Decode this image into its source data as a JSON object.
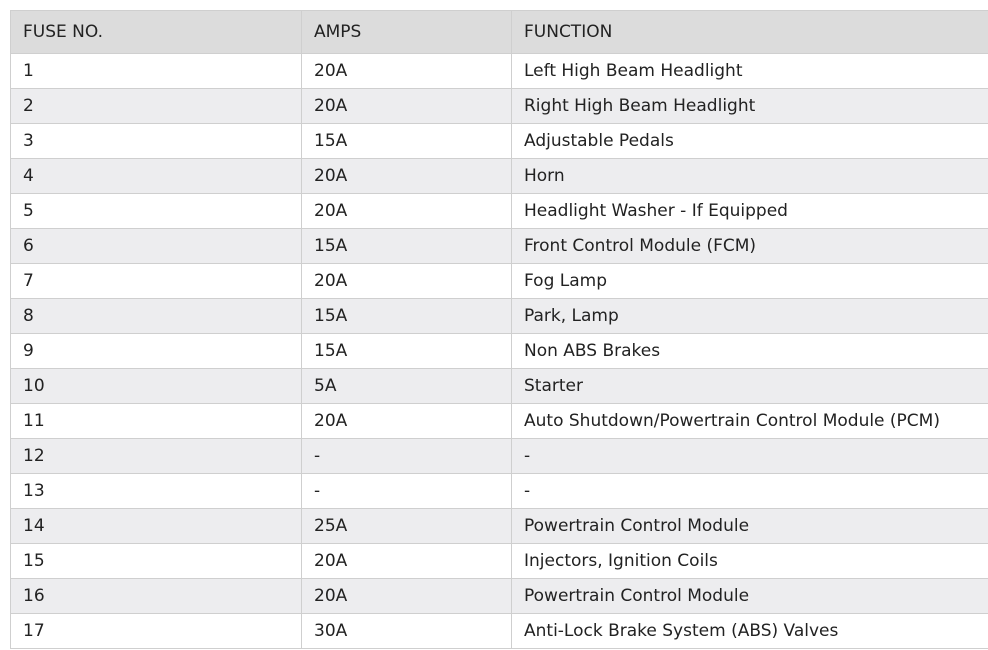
{
  "headers": [
    "FUSE NO.",
    "AMPS",
    "FUNCTION"
  ],
  "rows": [
    [
      "1",
      "20A",
      "Left High Beam Headlight"
    ],
    [
      "2",
      "20A",
      "Right High Beam Headlight"
    ],
    [
      "3",
      "15A",
      "Adjustable Pedals"
    ],
    [
      "4",
      "20A",
      "Horn"
    ],
    [
      "5",
      "20A",
      "Headlight Washer - If Equipped"
    ],
    [
      "6",
      "15A",
      "Front Control Module (FCM)"
    ],
    [
      "7",
      "20A",
      "Fog Lamp"
    ],
    [
      "8",
      "15A",
      "Park, Lamp"
    ],
    [
      "9",
      "15A",
      "Non ABS Brakes"
    ],
    [
      "10",
      "5A",
      "Starter"
    ],
    [
      "11",
      "20A",
      "Auto Shutdown/Powertrain Control Module (PCM)"
    ],
    [
      "12",
      "-",
      "-"
    ],
    [
      "13",
      "-",
      "-"
    ],
    [
      "14",
      "25A",
      "Powertrain Control Module"
    ],
    [
      "15",
      "20A",
      "Injectors, Ignition Coils"
    ],
    [
      "16",
      "20A",
      "Powertrain Control Module"
    ],
    [
      "17",
      "30A",
      "Anti-Lock Brake System (ABS) Valves"
    ]
  ]
}
